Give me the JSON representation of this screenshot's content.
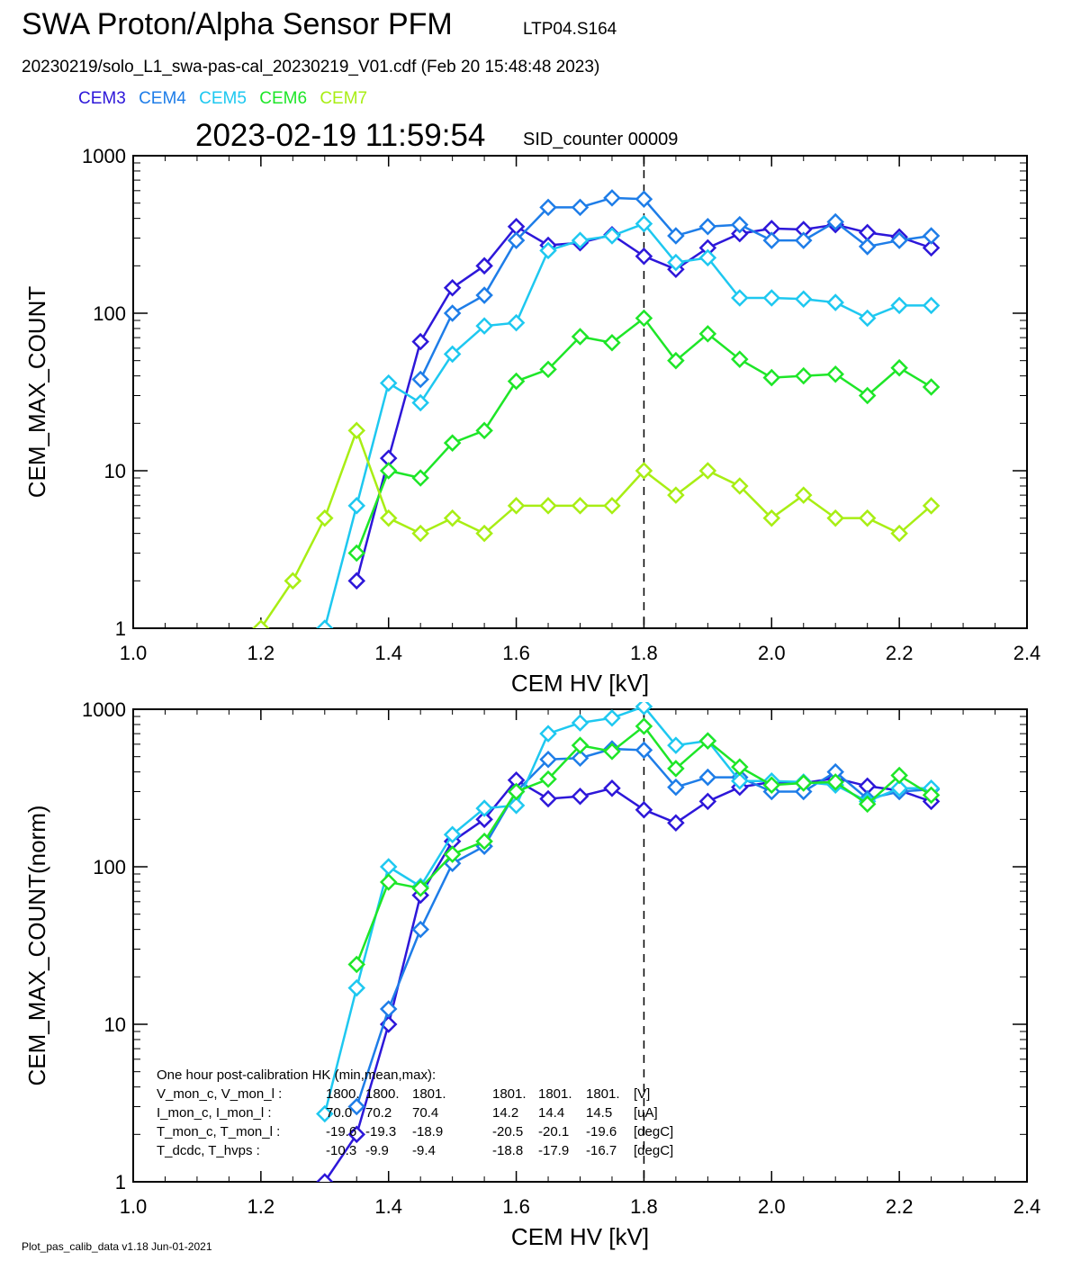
{
  "header": {
    "title": "SWA Proton/Alpha Sensor PFM",
    "run_id": "LTP04.S164",
    "file_line": "20230219/solo_L1_swa-pas-cal_20230219_V01.cdf  (Feb 20 15:48:48 2023)",
    "timestamp": "2023-02-19 11:59:54",
    "sid_counter": "SID_counter 00009"
  },
  "legend": [
    {
      "name": "CEM3",
      "color": "#2d17d9"
    },
    {
      "name": "CEM4",
      "color": "#1e7de8"
    },
    {
      "name": "CEM5",
      "color": "#1ec8f0"
    },
    {
      "name": "CEM6",
      "color": "#1ee628"
    },
    {
      "name": "CEM7",
      "color": "#a8ee14"
    }
  ],
  "footer": "Plot_pas_calib_data v1.18 Jun-01-2021",
  "chart_data": [
    {
      "type": "line",
      "ylabel": "CEM_MAX_COUNT",
      "xlabel": "CEM HV [kV]",
      "xlim": [
        1.0,
        2.4
      ],
      "ylim": [
        1,
        1000
      ],
      "yscale": "log",
      "x_ticks": [
        "1.0",
        "1.2",
        "1.4",
        "1.6",
        "1.8",
        "2.0",
        "2.2",
        "2.4"
      ],
      "y_ticks": [
        "1",
        "10",
        "100",
        "1000"
      ],
      "marker": "diamond",
      "vline_x": 1.8,
      "series": [
        {
          "name": "CEM3",
          "color": "#2d17d9",
          "x": [
            1.35,
            1.4,
            1.45,
            1.5,
            1.55,
            1.6,
            1.65,
            1.7,
            1.75,
            1.8,
            1.85,
            1.9,
            1.95,
            2.0,
            2.05,
            2.1,
            2.15,
            2.2,
            2.25
          ],
          "y": [
            2,
            12,
            66,
            145,
            200,
            355,
            270,
            280,
            315,
            230,
            190,
            260,
            320,
            345,
            340,
            365,
            325,
            305,
            260
          ]
        },
        {
          "name": "CEM4",
          "color": "#1e7de8",
          "x": [
            1.45,
            1.5,
            1.55,
            1.6,
            1.65,
            1.7,
            1.75,
            1.8,
            1.85,
            1.9,
            1.95,
            2.0,
            2.05,
            2.1,
            2.15,
            2.2,
            2.25
          ],
          "y": [
            38,
            100,
            130,
            290,
            470,
            470,
            540,
            530,
            310,
            355,
            365,
            290,
            290,
            380,
            265,
            290,
            310
          ]
        },
        {
          "name": "CEM5",
          "color": "#1ec8f0",
          "x": [
            1.3,
            1.35,
            1.4,
            1.45,
            1.5,
            1.55,
            1.6,
            1.65,
            1.7,
            1.75,
            1.8,
            1.85,
            1.9,
            1.95,
            2.0,
            2.05,
            2.1,
            2.15,
            2.2,
            2.25
          ],
          "y": [
            1,
            6,
            36,
            27,
            55,
            83,
            87,
            250,
            290,
            310,
            370,
            210,
            225,
            125,
            125,
            123,
            117,
            93,
            112,
            112
          ]
        },
        {
          "name": "CEM6",
          "color": "#1ee628",
          "x": [
            1.35,
            1.4,
            1.45,
            1.5,
            1.55,
            1.6,
            1.65,
            1.7,
            1.75,
            1.8,
            1.85,
            1.9,
            1.95,
            2.0,
            2.05,
            2.1,
            2.15,
            2.2,
            2.25
          ],
          "y": [
            3,
            10,
            9,
            15,
            18,
            37,
            44,
            71,
            65,
            93,
            50,
            74,
            51,
            39,
            40,
            41,
            30,
            45,
            34
          ]
        },
        {
          "name": "CEM7",
          "color": "#a8ee14",
          "x": [
            1.2,
            1.25,
            1.3,
            1.35,
            1.4,
            1.45,
            1.5,
            1.55,
            1.6,
            1.65,
            1.7,
            1.75,
            1.8,
            1.85,
            1.9,
            1.95,
            2.0,
            2.05,
            2.1,
            2.15,
            2.2,
            2.25
          ],
          "y": [
            1,
            2,
            5,
            18,
            5,
            4,
            5,
            4,
            6,
            6,
            6,
            6,
            10,
            7,
            10,
            8,
            5,
            7,
            5,
            5,
            4,
            6
          ]
        }
      ]
    },
    {
      "type": "line",
      "ylabel": "CEM_MAX_COUNT(norm)",
      "xlabel": "CEM HV [kV]",
      "xlim": [
        1.0,
        2.4
      ],
      "ylim": [
        1,
        1000
      ],
      "yscale": "log",
      "x_ticks": [
        "1.0",
        "1.2",
        "1.4",
        "1.6",
        "1.8",
        "2.0",
        "2.2",
        "2.4"
      ],
      "y_ticks": [
        "1",
        "10",
        "100",
        "1000"
      ],
      "marker": "diamond",
      "vline_x": 1.8,
      "series": [
        {
          "name": "CEM3",
          "color": "#2d17d9",
          "x": [
            1.3,
            1.35,
            1.4,
            1.45,
            1.5,
            1.55,
            1.6,
            1.65,
            1.7,
            1.75,
            1.8,
            1.85,
            1.9,
            1.95,
            2.0,
            2.05,
            2.1,
            2.15,
            2.2,
            2.25
          ],
          "y": [
            1,
            2,
            10,
            66,
            145,
            200,
            355,
            270,
            280,
            315,
            230,
            190,
            260,
            320,
            345,
            340,
            365,
            325,
            305,
            260
          ]
        },
        {
          "name": "CEM4",
          "color": "#1e7de8",
          "x": [
            1.35,
            1.4,
            1.45,
            1.5,
            1.55,
            1.6,
            1.65,
            1.7,
            1.75,
            1.8,
            1.85,
            1.9,
            1.95,
            2.0,
            2.05,
            2.1,
            2.15,
            2.2,
            2.25
          ],
          "y": [
            3,
            12.5,
            40,
            105,
            135,
            300,
            480,
            490,
            560,
            550,
            320,
            370,
            370,
            300,
            300,
            400,
            270,
            300,
            310
          ]
        },
        {
          "name": "CEM5",
          "color": "#1ec8f0",
          "x": [
            1.3,
            1.35,
            1.4,
            1.45,
            1.5,
            1.55,
            1.6,
            1.65,
            1.7,
            1.75,
            1.8,
            1.85,
            1.9,
            1.95,
            2.0,
            2.05,
            2.1,
            2.15,
            2.2,
            2.25
          ],
          "y": [
            2.7,
            17,
            100,
            75,
            160,
            235,
            245,
            700,
            820,
            880,
            1040,
            590,
            630,
            350,
            350,
            345,
            330,
            260,
            315,
            315
          ]
        },
        {
          "name": "CEM6",
          "color": "#1ee628",
          "x": [
            1.35,
            1.4,
            1.45,
            1.5,
            1.55,
            1.6,
            1.65,
            1.7,
            1.75,
            1.8,
            1.85,
            1.9,
            1.95,
            2.0,
            2.05,
            2.1,
            2.15,
            2.2,
            2.25
          ],
          "y": [
            24,
            80,
            73,
            120,
            145,
            300,
            360,
            590,
            540,
            780,
            420,
            630,
            430,
            330,
            340,
            345,
            250,
            380,
            285
          ]
        }
      ]
    }
  ],
  "hk_box": {
    "heading": "One hour post-calibration HK (min,mean,max):",
    "rows": [
      {
        "label": "V_mon_c, V_mon_l :",
        "a": [
          "1800.",
          "1800.",
          "1801."
        ],
        "b": [
          "1801.",
          "1801.",
          "1801."
        ],
        "unit": "[V]"
      },
      {
        "label": "I_mon_c,  I_mon_l :",
        "a": [
          "70.0",
          "70.2",
          "70.4"
        ],
        "b": [
          "14.2",
          "14.4",
          "14.5"
        ],
        "unit": "[uA]"
      },
      {
        "label": "T_mon_c, T_mon_l :",
        "a": [
          "-19.6",
          "-19.3",
          "-18.9"
        ],
        "b": [
          "-20.5",
          "-20.1",
          "-19.6"
        ],
        "unit": "[degC]"
      },
      {
        "label": "T_dcdc,    T_hvps :",
        "a": [
          "-10.3",
          "-9.9",
          "-9.4"
        ],
        "b": [
          "-18.8",
          "-17.9",
          "-16.7"
        ],
        "unit": "[degC]"
      }
    ]
  }
}
